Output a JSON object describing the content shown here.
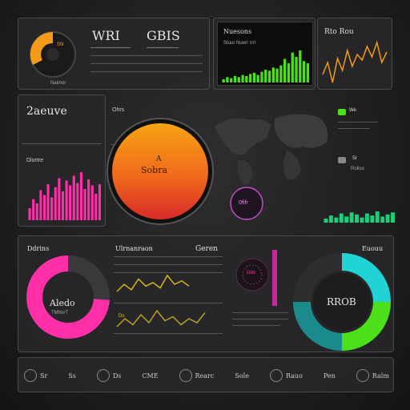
{
  "colors": {
    "orange": "#f39a1a",
    "magenta": "#ff2fa8",
    "cyan": "#22d3d6",
    "green": "#4be01a",
    "panel": "#2a2a2c"
  },
  "top_left": {
    "gauge_title": "Sfir",
    "title_a": "WRI",
    "title_b": "GBIS",
    "sub_a": "Naimor"
  },
  "top_chart": {
    "title": "Nuesons",
    "subtitle": "Stuur Nuerr rrrl",
    "bars": [
      3,
      5,
      4,
      6,
      5,
      7,
      6,
      8,
      9,
      7,
      10,
      12,
      11,
      14,
      13,
      16,
      22,
      18,
      28,
      24,
      30,
      20,
      18
    ]
  },
  "top_right": {
    "title": "Rto Rou",
    "line": [
      40,
      55,
      30,
      60,
      45,
      70,
      50,
      65,
      58,
      75,
      62,
      80,
      55,
      68
    ]
  },
  "mid_left": {
    "big": "2aeuve",
    "small": "Ohrs",
    "label": "Dlortre",
    "bars": [
      20,
      35,
      28,
      50,
      42,
      60,
      38,
      55,
      70,
      48,
      66,
      58,
      74,
      62,
      80,
      52,
      68,
      58,
      44,
      60
    ]
  },
  "center": {
    "circle_line1": "A",
    "circle_line2": "Sobra",
    "small_circle": "0fifr"
  },
  "mid_right": {
    "item1": "We",
    "item2": "Sr",
    "label": "Roilso"
  },
  "bottom_left": {
    "title": "Ddrins",
    "donut_center": "Aledo",
    "donut_sub": "TMfmrT"
  },
  "bottom_mid": {
    "title": "Ulrnanraon",
    "right_title": "Geren",
    "tag_a": "Ds",
    "tag_b": "Ddo"
  },
  "bottom_right": {
    "title": "Euouu",
    "donut_center": "RROB"
  },
  "footer": {
    "items": [
      "Sr",
      "Ss",
      "Ds",
      "CME",
      "Rearc",
      "Sole",
      "Rauo",
      "Pen",
      "Ralm"
    ]
  }
}
